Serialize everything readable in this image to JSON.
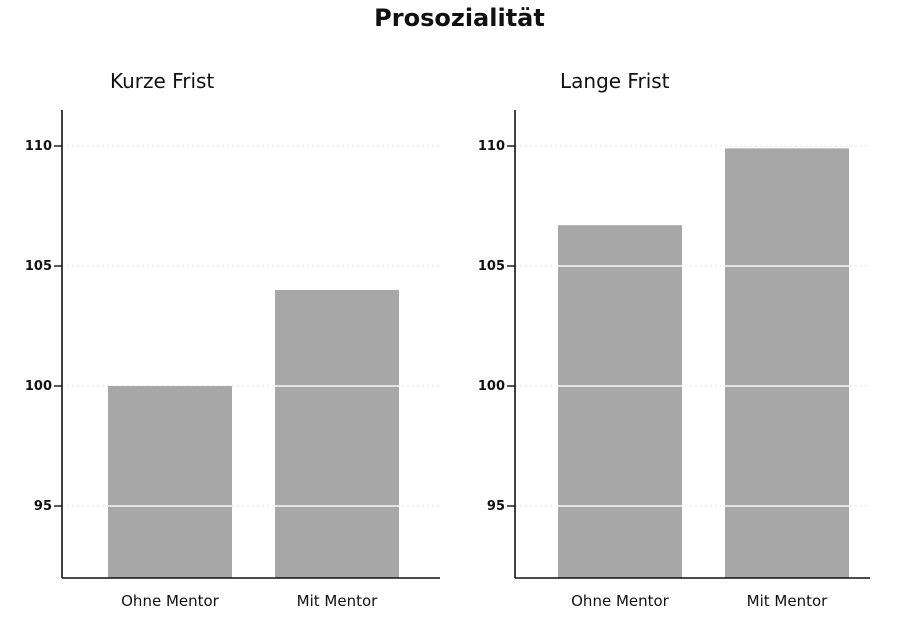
{
  "title": "Prosozialität",
  "colors": {
    "bar": "#a7a7a7",
    "axis": "#111111"
  },
  "chart_data": [
    {
      "type": "bar",
      "title": "Kurze Frist",
      "categories": [
        "Ohne Mentor",
        "Mit Mentor"
      ],
      "values": [
        100.0,
        104.0
      ],
      "yticks": [
        95,
        100,
        105,
        110
      ],
      "ylim": [
        92,
        111.5
      ],
      "xlabel": "",
      "ylabel": "",
      "grid": true
    },
    {
      "type": "bar",
      "title": "Lange Frist",
      "categories": [
        "Ohne Mentor",
        "Mit Mentor"
      ],
      "values": [
        106.7,
        109.9
      ],
      "yticks": [
        95,
        100,
        105,
        110
      ],
      "ylim": [
        92,
        111.5
      ],
      "xlabel": "",
      "ylabel": "",
      "grid": true
    }
  ]
}
